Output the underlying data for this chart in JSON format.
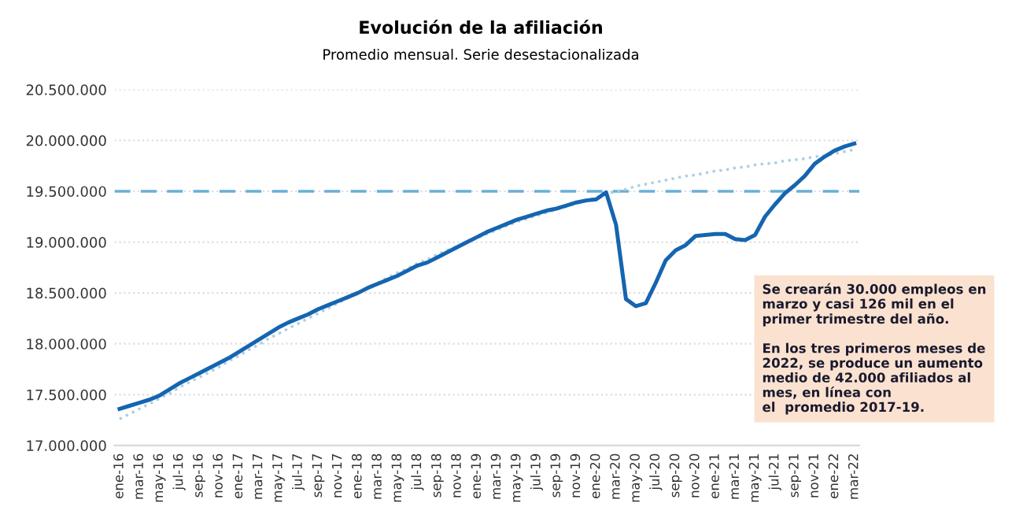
{
  "chart_data": {
    "type": "line",
    "title": "Evolución de la afiliación",
    "subtitle": "Promedio mensual. Serie desestacionalizada",
    "categories": [
      "ene-16",
      null,
      "mar-16",
      null,
      "may-16",
      null,
      "jul-16",
      null,
      "sep-16",
      null,
      "nov-16",
      null,
      "ene-17",
      null,
      "mar-17",
      null,
      "may-17",
      null,
      "jul-17",
      null,
      "sep-17",
      null,
      "nov-17",
      null,
      "ene-18",
      null,
      "mar-18",
      null,
      "may-18",
      null,
      "jul-18",
      null,
      "sep-18",
      null,
      "nov-18",
      null,
      "ene-19",
      null,
      "mar-19",
      null,
      "may-19",
      null,
      "jul-19",
      null,
      "sep-19",
      null,
      "nov-19",
      null,
      "ene-20",
      null,
      "mar-20",
      null,
      "may-20",
      null,
      "jul-20",
      null,
      "sep-20",
      null,
      "nov-20",
      null,
      "ene-21",
      null,
      "mar-21",
      null,
      "may-21",
      null,
      "jul-21",
      null,
      "sep-21",
      null,
      "nov-21",
      null,
      "ene-22",
      null,
      "mar-22"
    ],
    "series": [
      {
        "color": "#1565b0",
        "line_style": "solid",
        "values": [
          17360000,
          17390000,
          17420000,
          17450000,
          17490000,
          17550000,
          17610000,
          17660000,
          17710000,
          17760000,
          17810000,
          17860000,
          17920000,
          17980000,
          18040000,
          18100000,
          18160000,
          18210000,
          18250000,
          18290000,
          18340000,
          18380000,
          18420000,
          18460000,
          18500000,
          18550000,
          18590000,
          18630000,
          18670000,
          18720000,
          18770000,
          18800000,
          18850000,
          18900000,
          18950000,
          19000000,
          19050000,
          19100000,
          19140000,
          19180000,
          19220000,
          19250000,
          19280000,
          19310000,
          19330000,
          19360000,
          19390000,
          19410000,
          19420000,
          19490000,
          19170000,
          18440000,
          18370000,
          18400000,
          18600000,
          18820000,
          18920000,
          18970000,
          19060000,
          19070000,
          19080000,
          19080000,
          19030000,
          19020000,
          19070000,
          19250000,
          19370000,
          19480000,
          19560000,
          19650000,
          19770000,
          19840000,
          19900000,
          19940000,
          19970000
        ]
      },
      {
        "color": "#a9cfe3",
        "line_style": "dotted",
        "values": [
          17260000,
          17310000,
          17360000,
          17410000,
          17460000,
          17510000,
          17570000,
          17620000,
          17670000,
          17720000,
          17770000,
          17830000,
          17880000,
          17940000,
          17990000,
          18050000,
          18100000,
          18150000,
          18200000,
          18250000,
          18300000,
          18350000,
          18400000,
          18450000,
          18500000,
          18550000,
          18600000,
          18650000,
          18700000,
          18740000,
          18790000,
          18830000,
          18880000,
          18920000,
          18960000,
          19000000,
          19040000,
          19080000,
          19120000,
          19160000,
          19200000,
          19230000,
          19260000,
          19290000,
          19320000,
          19350000,
          19380000,
          19410000,
          19440000,
          19470000,
          19500000,
          19520000,
          19550000,
          19570000,
          19590000,
          19610000,
          19630000,
          19650000,
          19660000,
          19680000,
          19700000,
          19710000,
          19730000,
          19740000,
          19760000,
          19770000,
          19780000,
          19800000,
          19810000,
          19820000,
          19840000,
          19850000,
          19870000,
          19890000,
          19910000
        ]
      }
    ],
    "ylim": [
      17000000,
      20500000
    ],
    "yticks": [
      {
        "value": 17000000,
        "label": "17.000.000"
      },
      {
        "value": 17500000,
        "label": "17.500.000"
      },
      {
        "value": 18000000,
        "label": "18.000.000"
      },
      {
        "value": 18500000,
        "label": "18.500.000"
      },
      {
        "value": 19000000,
        "label": "19.000.000"
      },
      {
        "value": 19500000,
        "label": "19.500.000"
      },
      {
        "value": 20000000,
        "label": "20.000.000"
      },
      {
        "value": 20500000,
        "label": "20.500.000"
      }
    ],
    "grid": "y",
    "ref_lines": [
      {
        "axis": "y",
        "value": 19500000,
        "label": null,
        "color": "#6aaed6",
        "line_style": "dashed"
      }
    ],
    "annotations": [
      "Se crearán 30.000 empleos en\nmarzo y casi 126 mil en el\nprimer trimestre del año.\n\nEn los tres primeros meses de\n2022, se produce un aumento\nmedio de 42.000 afiliados al\nmes, en línea con\nel  promedio 2017-19."
    ]
  }
}
